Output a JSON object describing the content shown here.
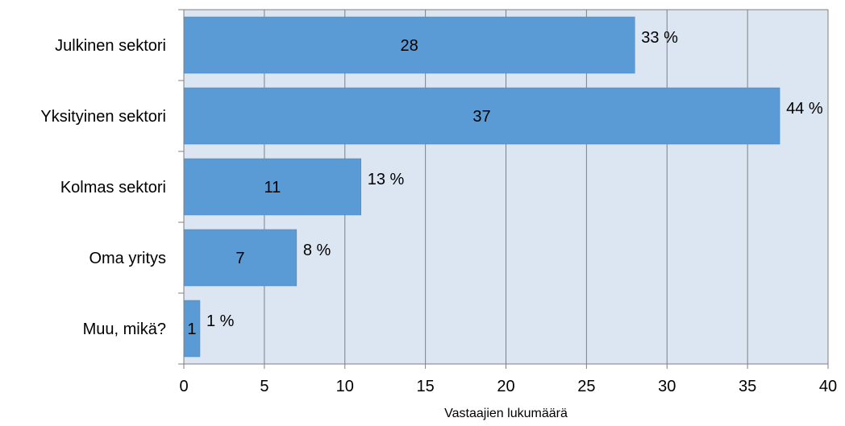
{
  "chart_data": {
    "type": "bar",
    "orientation": "horizontal",
    "categories": [
      "Julkinen sektori",
      "Yksityinen sektori",
      "Kolmas sektori",
      "Oma yritys",
      "Muu, mikä?"
    ],
    "values": [
      28,
      37,
      11,
      7,
      1
    ],
    "percent_labels": [
      "33 %",
      "44 %",
      "13 %",
      "8 %",
      "1 %"
    ],
    "title": "",
    "xlabel": "Vastaajien lukumäärä",
    "ylabel": "",
    "xlim": [
      0,
      40
    ],
    "xticks": [
      0,
      5,
      10,
      15,
      20,
      25,
      30,
      35,
      40
    ],
    "grid": "vertical",
    "legend": "none"
  },
  "colors": {
    "bar": "#5B9BD5",
    "bar_edge": "#4A86BE",
    "plot_background": "#DCE6F2",
    "grid": "#7F7F7F",
    "axis": "#7F7F7F",
    "text": "#000000"
  }
}
